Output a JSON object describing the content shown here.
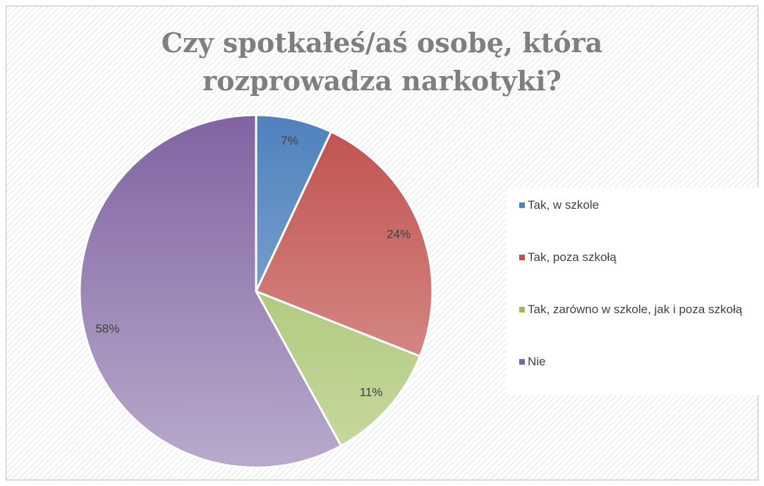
{
  "chart_data": {
    "type": "pie",
    "title": "Czy spotkałeś/aś osobę, która rozprowadza narkotyki?",
    "categories": [
      "Tak, w szkole",
      "Tak, poza szkołą",
      "Tak, zarówno w szkole, jak i poza szkołą",
      "Nie"
    ],
    "values": [
      7,
      24,
      11,
      58
    ],
    "value_labels": [
      "7%",
      "24%",
      "11%",
      "58%"
    ],
    "colors": [
      "#4f81bd",
      "#c0504d",
      "#9bbb59",
      "#8064a2"
    ],
    "legend": "right"
  }
}
